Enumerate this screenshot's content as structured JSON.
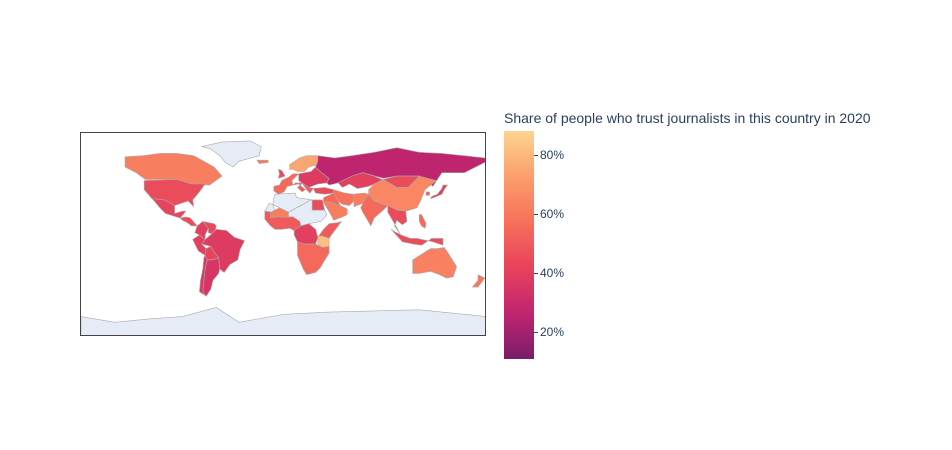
{
  "chart_data": {
    "type": "choropleth",
    "title": "",
    "colorbar": {
      "title": "Share of people who trust journalists in this country in 2020",
      "range": [
        11,
        88
      ],
      "ticks": [
        {
          "value": 20,
          "label": "20%"
        },
        {
          "value": 40,
          "label": "40%"
        },
        {
          "value": 60,
          "label": "60%"
        },
        {
          "value": 80,
          "label": "80%"
        }
      ],
      "colorscale": [
        "#7a1d6b",
        "#c0256e",
        "#e8425d",
        "#f7705a",
        "#fb9e6c",
        "#fcd38f"
      ]
    },
    "no_data_color": "#e5ecf6",
    "border_color": "#aaaaaa",
    "regions": [
      {
        "name": "Canada",
        "value": 62
      },
      {
        "name": "United States",
        "value": 45
      },
      {
        "name": "Mexico",
        "value": 42
      },
      {
        "name": "Central America",
        "value": 45
      },
      {
        "name": "Colombia",
        "value": 40
      },
      {
        "name": "Venezuela",
        "value": 44
      },
      {
        "name": "Brazil",
        "value": 38
      },
      {
        "name": "Peru",
        "value": 40
      },
      {
        "name": "Bolivia",
        "value": 42
      },
      {
        "name": "Argentina",
        "value": 35
      },
      {
        "name": "Chile",
        "value": 37
      },
      {
        "name": "Greenland",
        "value": null
      },
      {
        "name": "Iceland",
        "value": 60
      },
      {
        "name": "United Kingdom",
        "value": 45
      },
      {
        "name": "Scandinavia",
        "value": 75
      },
      {
        "name": "Western Europe",
        "value": 55
      },
      {
        "name": "Southern Europe",
        "value": 50
      },
      {
        "name": "Eastern Europe",
        "value": 38
      },
      {
        "name": "Russia",
        "value": 26
      },
      {
        "name": "Kazakhstan",
        "value": 40
      },
      {
        "name": "Turkey",
        "value": 45
      },
      {
        "name": "Middle East",
        "value": 55
      },
      {
        "name": "Saudi Arabia",
        "value": 62
      },
      {
        "name": "Iran",
        "value": 58
      },
      {
        "name": "Afghanistan",
        "value": 62
      },
      {
        "name": "India",
        "value": 55
      },
      {
        "name": "China",
        "value": 65
      },
      {
        "name": "Mongolia",
        "value": 45
      },
      {
        "name": "Southeast Asia",
        "value": 45
      },
      {
        "name": "Indonesia",
        "value": 45
      },
      {
        "name": "Japan",
        "value": 40
      },
      {
        "name": "South Korea",
        "value": 50
      },
      {
        "name": "Philippines",
        "value": 55
      },
      {
        "name": "Australia",
        "value": 63
      },
      {
        "name": "New Zealand",
        "value": 60
      },
      {
        "name": "West Africa",
        "value": 50
      },
      {
        "name": "Mali",
        "value": 62
      },
      {
        "name": "Egypt",
        "value": 45
      },
      {
        "name": "Central Africa",
        "value": 40
      },
      {
        "name": "East Africa",
        "value": 50
      },
      {
        "name": "Tanzania",
        "value": 82
      },
      {
        "name": "Southern Africa",
        "value": 55
      },
      {
        "name": "Antarctica",
        "value": null
      }
    ]
  }
}
